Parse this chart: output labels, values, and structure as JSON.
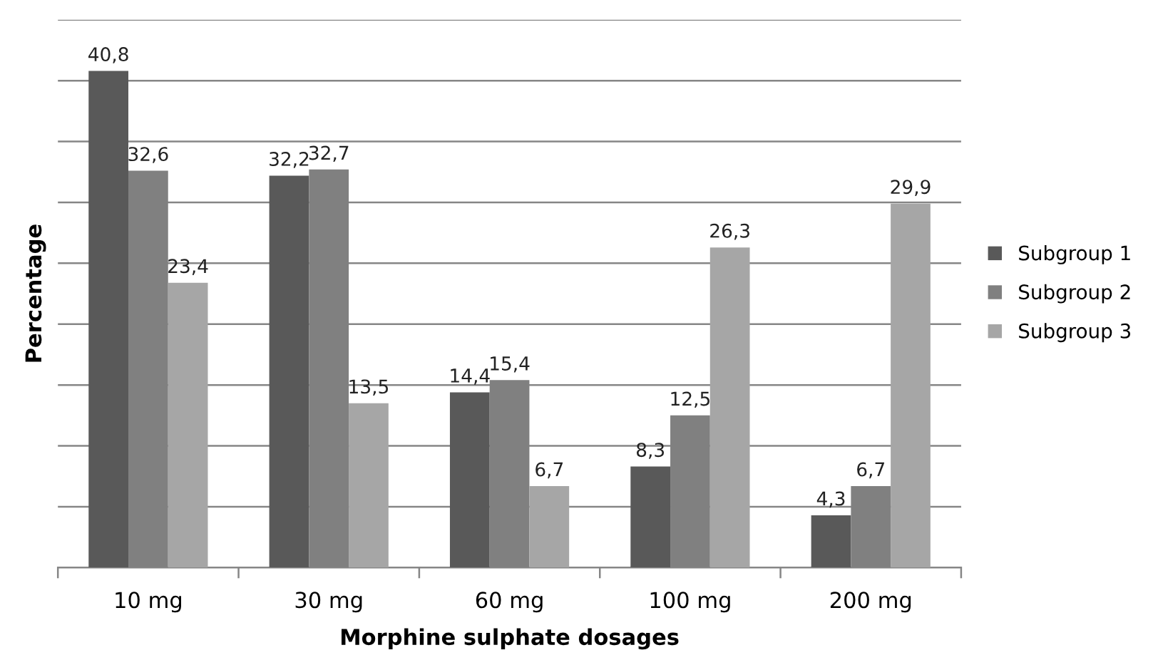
{
  "chart_data": {
    "type": "bar",
    "xlabel": "Morphine sulphate dosages",
    "ylabel": "Percentage",
    "categories": [
      "10 mg",
      "30 mg",
      "60 mg",
      "100 mg",
      "200 mg"
    ],
    "series": [
      {
        "name": "Subgroup 1",
        "color": "#595959",
        "values": [
          40.8,
          32.2,
          14.4,
          8.3,
          4.3
        ],
        "value_labels": [
          "40,8",
          "32,2",
          "14,4",
          "8,3",
          "4,3"
        ]
      },
      {
        "name": "Subgroup 2",
        "color": "#808080",
        "values": [
          32.6,
          32.7,
          15.4,
          12.5,
          6.7
        ],
        "value_labels": [
          "32,6",
          "32,7",
          "15,4",
          "12,5",
          "6,7"
        ]
      },
      {
        "name": "Subgroup 3",
        "color": "#a6a6a6",
        "values": [
          23.4,
          13.5,
          6.7,
          26.3,
          29.9
        ],
        "value_labels": [
          "23,4",
          "13,5",
          "6,7",
          "26,3",
          "29,9"
        ]
      }
    ],
    "ylim": [
      0,
      45
    ],
    "yticks": [
      {
        "value": 0,
        "label": null
      },
      {
        "value": 5,
        "label": null
      },
      {
        "value": 10,
        "label": null
      },
      {
        "value": 15,
        "label": null
      },
      {
        "value": 20,
        "label": null
      },
      {
        "value": 25,
        "label": null
      },
      {
        "value": 30,
        "label": null
      },
      {
        "value": 35,
        "label": null
      },
      {
        "value": 40,
        "label": null
      },
      {
        "value": 45,
        "label": null
      }
    ],
    "grid": "y",
    "legend": "right",
    "tick_labels": "x"
  }
}
